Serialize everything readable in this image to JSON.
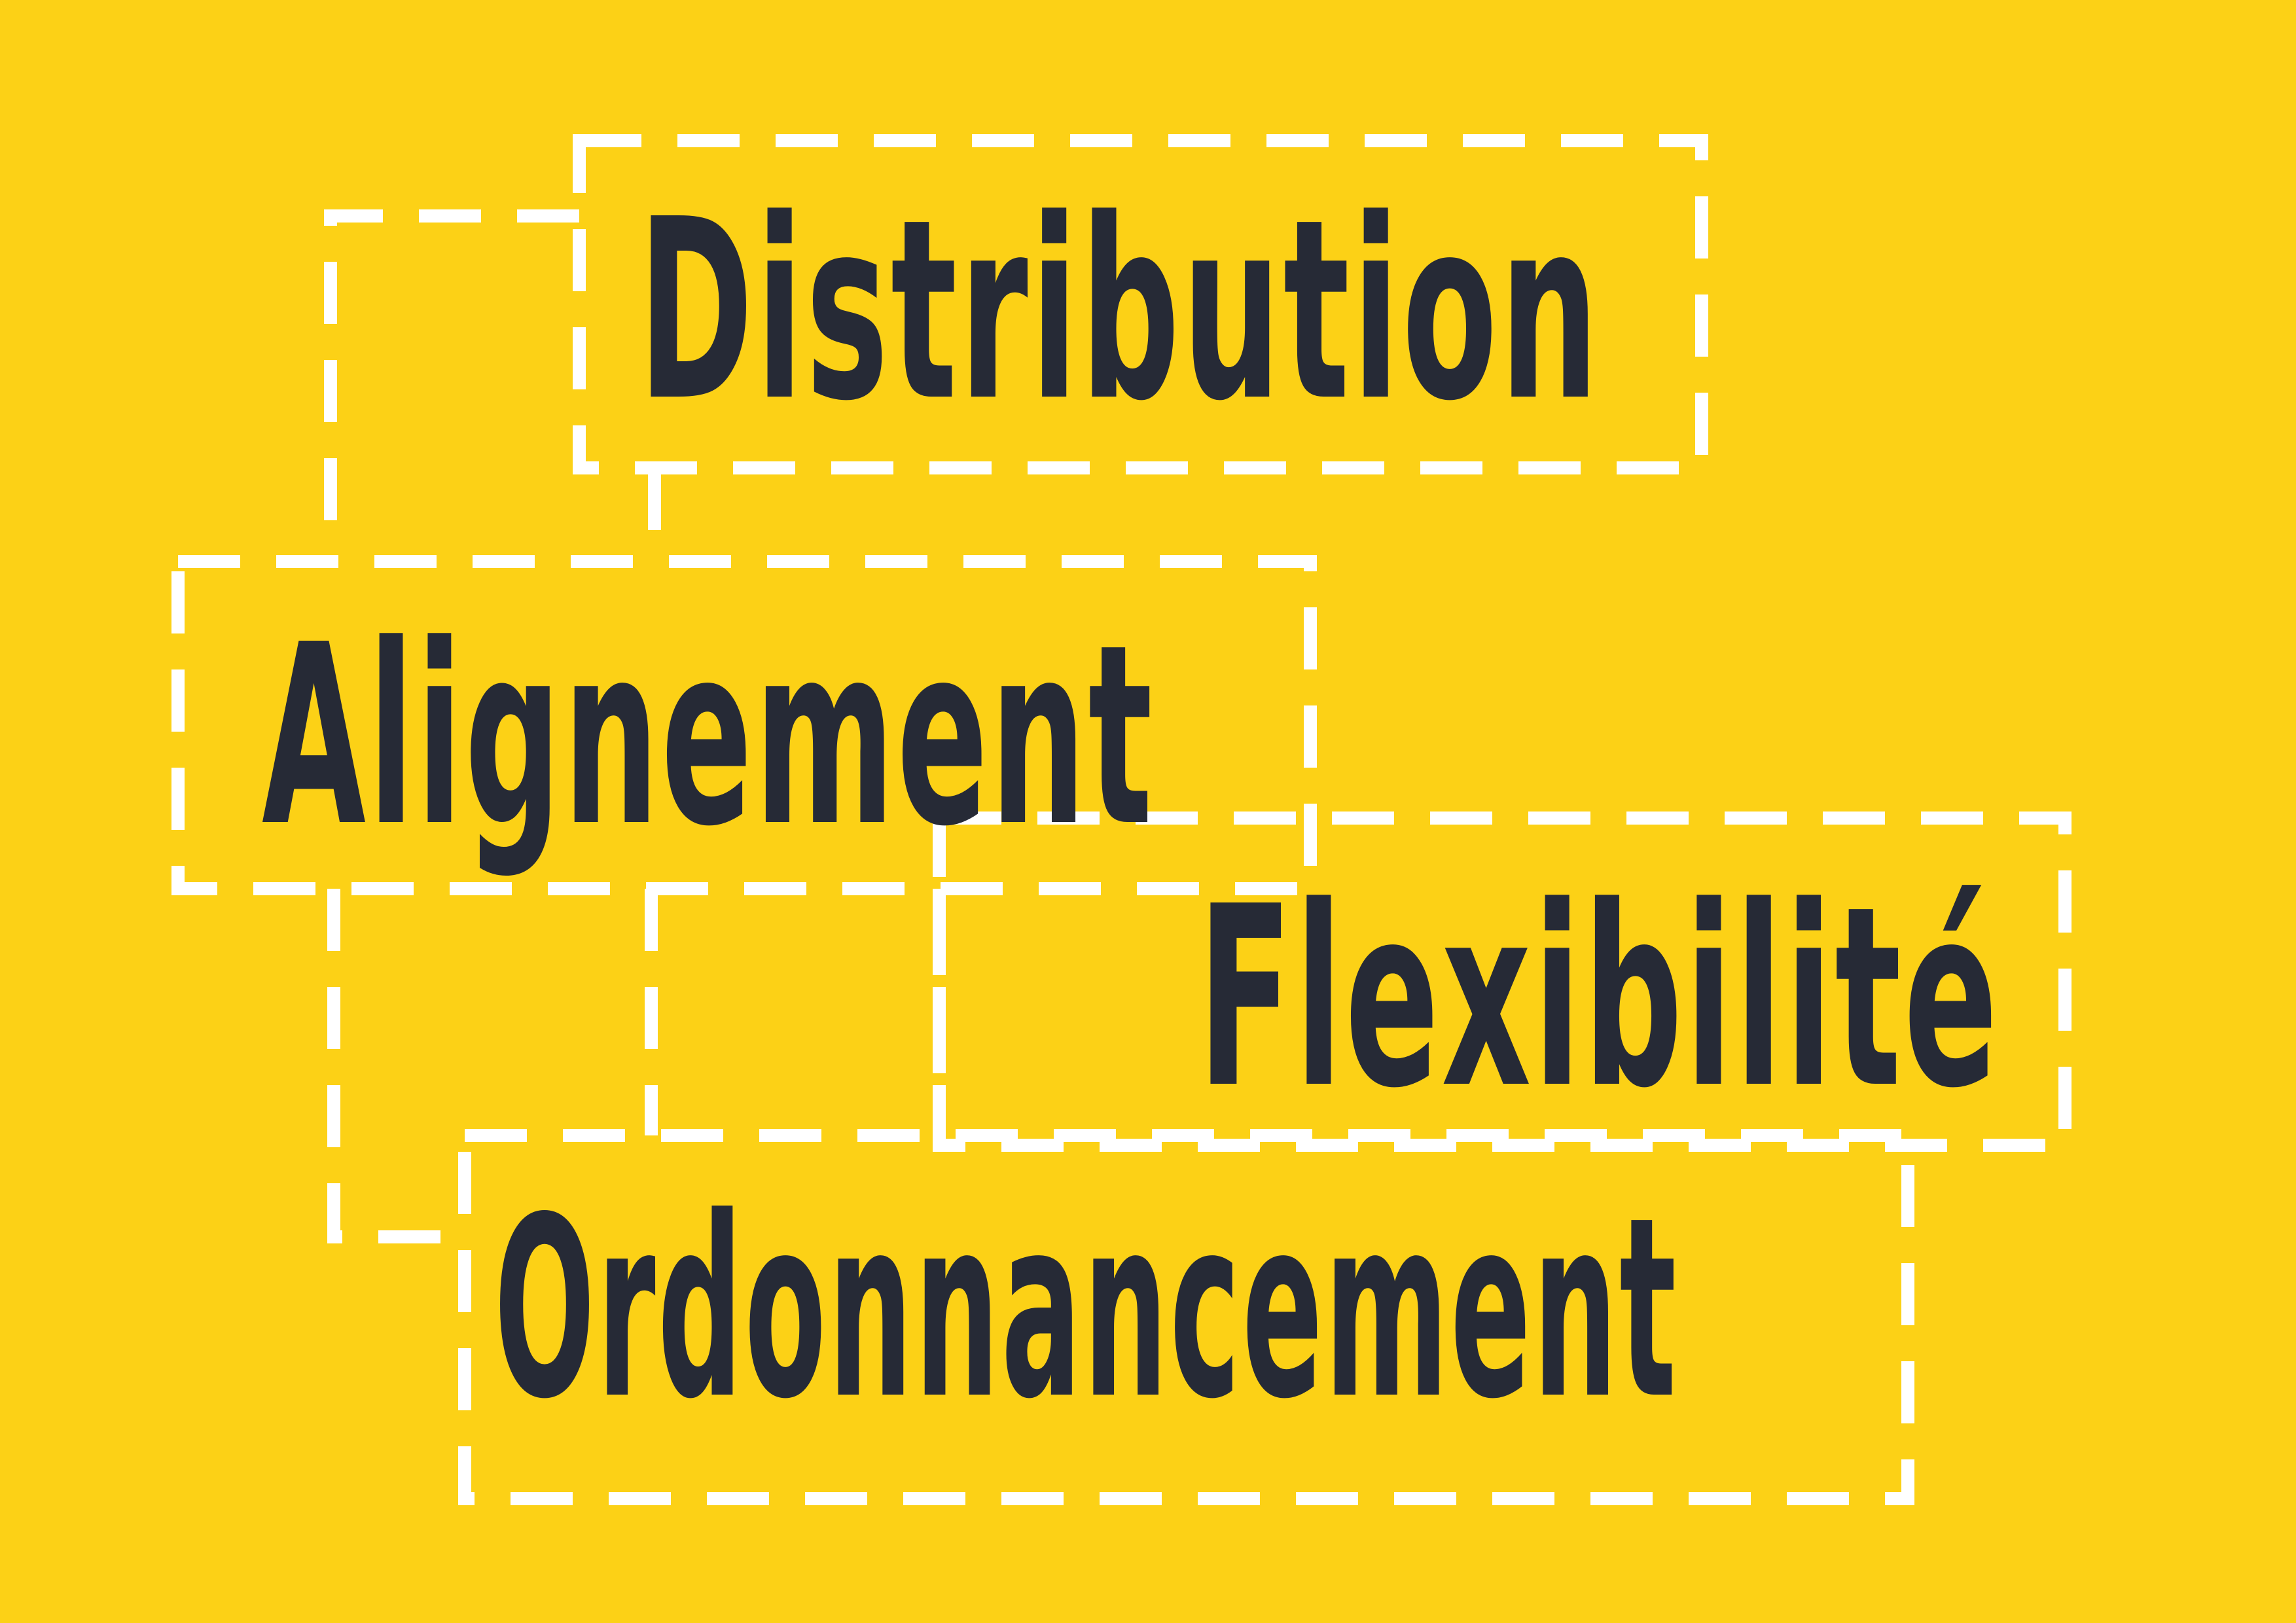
{
  "colors": {
    "background": "#FCD116",
    "text": "#262A36",
    "frame_stroke": "#FFFFFF"
  },
  "words": {
    "distribution": "Distribution",
    "alignement": "Alignement",
    "flexibilite": "Flexibilité",
    "ordonnancement": "Ordonnancement"
  }
}
